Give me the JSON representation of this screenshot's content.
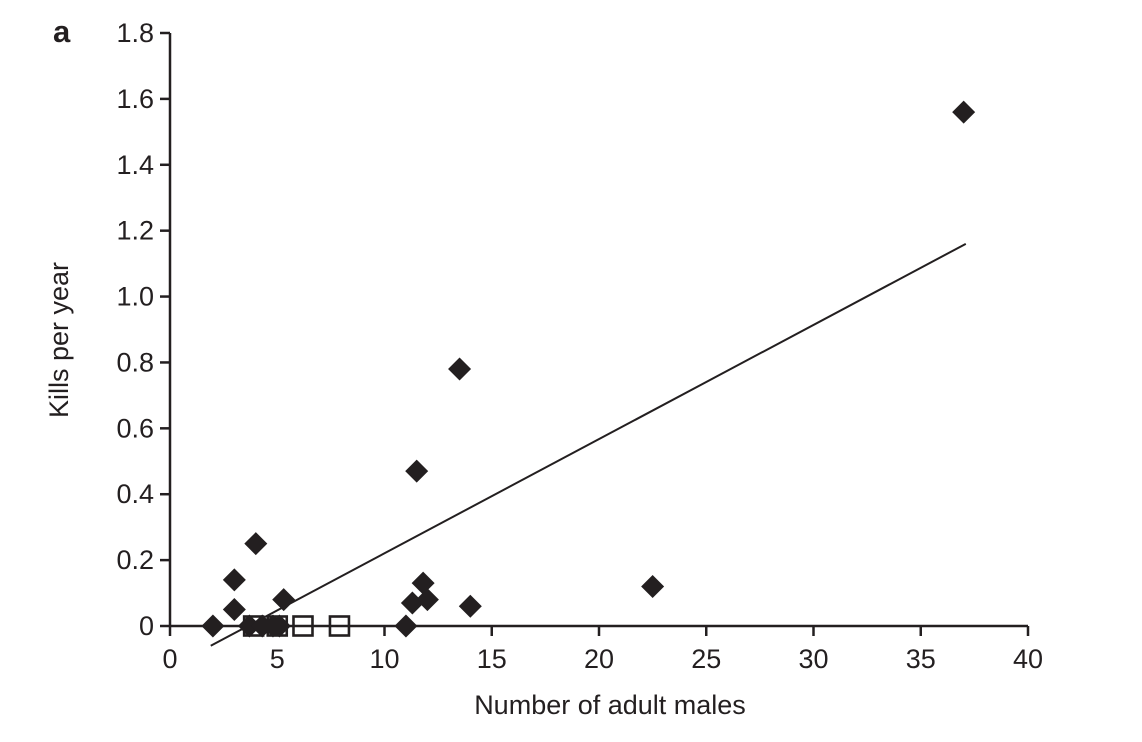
{
  "panel_label": "a",
  "colors": {
    "ink": "#231f20",
    "background": "#ffffff"
  },
  "chart_data": {
    "type": "scatter",
    "title": "",
    "xlabel": "Number of adult males",
    "ylabel": "Kills per year",
    "xlim": [
      0,
      40
    ],
    "ylim": [
      0,
      1.8
    ],
    "grid": false,
    "legend": "none",
    "xticks": [
      0,
      5,
      10,
      15,
      20,
      25,
      30,
      35,
      40
    ],
    "xtick_labels": [
      "0",
      "5",
      "10",
      "15",
      "20",
      "25",
      "30",
      "35",
      "40"
    ],
    "yticks": [
      0,
      0.2,
      0.4,
      0.6,
      0.8,
      1.0,
      1.2,
      1.4,
      1.6,
      1.8
    ],
    "ytick_labels": [
      "0",
      "0.2",
      "0.4",
      "0.6",
      "0.8",
      "1.0",
      "1.2",
      "1.4",
      "1.6",
      "1.8"
    ],
    "series": [
      {
        "name": "filled-diamond",
        "marker": "diamond",
        "points": [
          {
            "x": 2,
            "y": 0
          },
          {
            "x": 3,
            "y": 0.05
          },
          {
            "x": 3,
            "y": 0.14
          },
          {
            "x": 3.7,
            "y": 0
          },
          {
            "x": 4,
            "y": 0.25
          },
          {
            "x": 4.3,
            "y": 0
          },
          {
            "x": 4.8,
            "y": 0
          },
          {
            "x": 5.1,
            "y": 0
          },
          {
            "x": 5.3,
            "y": 0.08
          },
          {
            "x": 11,
            "y": 0
          },
          {
            "x": 11.3,
            "y": 0.07
          },
          {
            "x": 11.8,
            "y": 0.13
          },
          {
            "x": 12,
            "y": 0.08
          },
          {
            "x": 11.5,
            "y": 0.47
          },
          {
            "x": 13.5,
            "y": 0.78
          },
          {
            "x": 14,
            "y": 0.06
          },
          {
            "x": 22.5,
            "y": 0.12
          },
          {
            "x": 37,
            "y": 1.56
          }
        ]
      },
      {
        "name": "open-square",
        "marker": "square-open",
        "points": [
          {
            "x": 3.9,
            "y": 0
          },
          {
            "x": 5.0,
            "y": 0
          },
          {
            "x": 6.2,
            "y": 0
          },
          {
            "x": 7.9,
            "y": 0
          }
        ]
      }
    ],
    "trend_line": {
      "x1": 1.9,
      "y1": -0.06,
      "x2": 37.1,
      "y2": 1.16
    }
  }
}
